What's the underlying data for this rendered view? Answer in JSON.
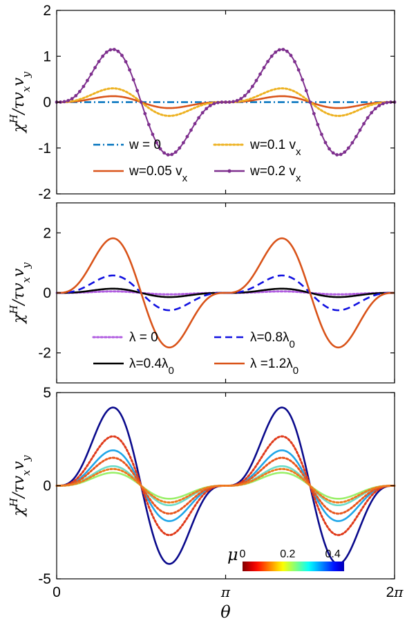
{
  "chart_data": [
    {
      "type": "line",
      "ylabel": "χ^H/τv_xv_y",
      "xlim": [
        0,
        6.2832
      ],
      "ylim": [
        -2,
        2
      ],
      "yticks": [
        -2,
        -1,
        0,
        1,
        2
      ],
      "x_tick_labels": [],
      "legend_placement": "bottom-center",
      "series": [
        {
          "name": "w = 0",
          "amplitude": 0.0,
          "color": "#0072BD",
          "style": "dashdot"
        },
        {
          "name": "w=0.05 v_x",
          "amplitude": 0.13,
          "color": "#D95319",
          "style": "solid"
        },
        {
          "name": "w=0.1 v_x",
          "amplitude": 0.3,
          "color": "#EDB120",
          "style": "dotted"
        },
        {
          "name": "w=0.2 v_x",
          "amplitude": 1.15,
          "color": "#7E2F8E",
          "style": "solid-markers"
        }
      ],
      "legend_labels": [
        {
          "pre": "w = 0",
          "sub": ""
        },
        {
          "pre": "w=0.1 v",
          "sub": "x"
        },
        {
          "pre": "w=0.05 v",
          "sub": "x"
        },
        {
          "pre": "w=0.2 v",
          "sub": "x"
        }
      ]
    },
    {
      "type": "line",
      "ylabel": "χ^H/τv_xv_y",
      "xlim": [
        0,
        6.2832
      ],
      "ylim": [
        -3,
        3
      ],
      "yticks": [
        -2,
        0,
        2
      ],
      "x_tick_labels": [],
      "legend_placement": "bottom-center",
      "series": [
        {
          "name": "λ = 0",
          "amplitude": 0.05,
          "color": "#B05CE0",
          "style": "dotted"
        },
        {
          "name": "λ=0.4λ_0",
          "amplitude": 0.14,
          "color": "#000000",
          "style": "solid"
        },
        {
          "name": "λ=0.8λ_0",
          "amplitude": 0.58,
          "color": "#1010E0",
          "style": "dashed"
        },
        {
          "name": "λ =1.2λ_0",
          "amplitude": 1.82,
          "color": "#D95319",
          "style": "solid"
        }
      ],
      "legend_labels": [
        {
          "pre": "λ = 0",
          "sub": ""
        },
        {
          "pre": "λ=0.8λ",
          "sub": "0"
        },
        {
          "pre": "λ=0.4λ",
          "sub": "0"
        },
        {
          "pre": "λ =1.2λ",
          "sub": "0"
        }
      ]
    },
    {
      "type": "line",
      "ylabel": "χ^H/τv_xv_y",
      "xlabel": "θ",
      "xlim": [
        0,
        6.2832
      ],
      "ylim": [
        -5,
        5
      ],
      "yticks": [
        -5,
        0,
        5
      ],
      "x_tick_labels": [
        "0",
        "π",
        "2π"
      ],
      "x_tick_values": [
        0,
        3.1416,
        6.2832
      ],
      "colorbar": {
        "label": "μ",
        "ticks": [
          "0",
          "0.2",
          "0.4"
        ],
        "tick_values": [
          0,
          0.2,
          0.4
        ],
        "range": [
          0,
          0.45
        ],
        "colormap": "jet"
      },
      "series": [
        {
          "mu": 0.45,
          "amplitude": 4.2,
          "color": "#0A0A8C",
          "style": "solid"
        },
        {
          "mu": 0.33,
          "amplitude": 1.9,
          "color": "#1FA6E8",
          "style": "solid"
        },
        {
          "mu": 0.22,
          "amplitude": 1.05,
          "color": "#6CDCC8",
          "style": "solid"
        },
        {
          "mu": 0.14,
          "amplitude": 0.7,
          "color": "#9AF06A",
          "style": "solid"
        },
        {
          "mu": 0.05,
          "amplitude": 2.65,
          "color": "#E03A1A",
          "style": "dotted"
        },
        {
          "mu": 0.08,
          "amplitude": 1.5,
          "color": "#E8561C",
          "style": "dotted"
        },
        {
          "mu": 0.11,
          "amplitude": 0.9,
          "color": "#EE7A1E",
          "style": "dotted"
        }
      ]
    }
  ]
}
